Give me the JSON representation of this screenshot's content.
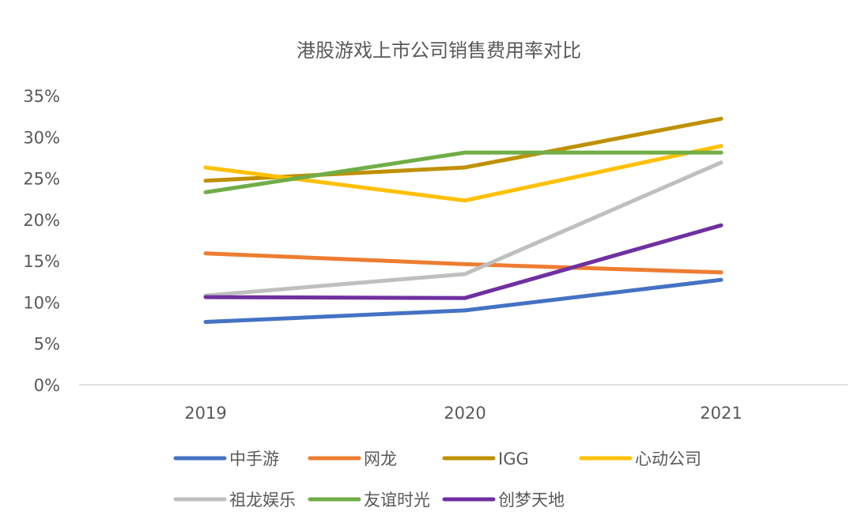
{
  "chart_data": {
    "type": "line",
    "title": "港股游戏上市公司销售费用率对比",
    "categories": [
      "2019",
      "2020",
      "2021"
    ],
    "yticks": [
      "0%",
      "5%",
      "10%",
      "15%",
      "20%",
      "25%",
      "30%",
      "35%"
    ],
    "ylim": [
      0,
      35
    ],
    "unit": "%",
    "grid": false,
    "legend_position": "bottom",
    "series": [
      {
        "name": "中手游",
        "color": "#4472C4",
        "values": [
          7.6,
          9.0,
          12.7
        ]
      },
      {
        "name": "网龙",
        "color": "#ED7D31",
        "values": [
          15.9,
          14.6,
          13.6
        ]
      },
      {
        "name": "IGG",
        "color": "#BF9000",
        "values": [
          24.7,
          26.3,
          32.2
        ]
      },
      {
        "name": "心动公司",
        "color": "#FFC000",
        "values": [
          26.3,
          22.3,
          28.9
        ]
      },
      {
        "name": "祖龙娱乐",
        "color": "#BFBFBF",
        "values": [
          10.8,
          13.4,
          26.9
        ]
      },
      {
        "name": "友谊时光",
        "color": "#70AD47",
        "values": [
          23.3,
          28.1,
          28.1
        ]
      },
      {
        "name": "创梦天地",
        "color": "#7030A0",
        "values": [
          10.6,
          10.5,
          19.3
        ]
      }
    ]
  }
}
